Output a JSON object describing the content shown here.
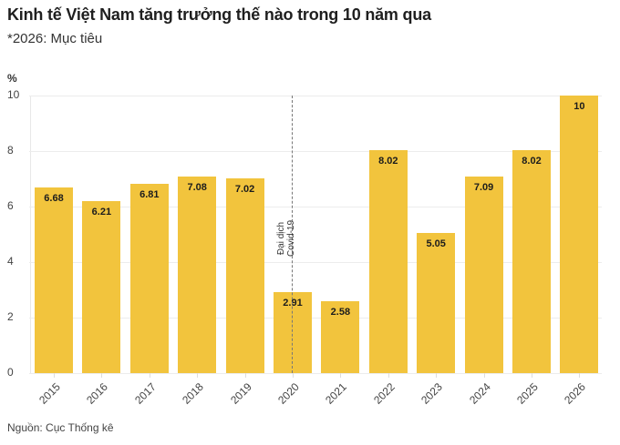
{
  "header": {
    "title": "Kinh tế Việt Nam tăng trưởng thế nào trong 10 năm qua",
    "subtitle": "*2026: Mục tiêu"
  },
  "footer": {
    "source": "Nguồn: Cục Thống kê"
  },
  "colors": {
    "bar": "#f2c43d",
    "grid": "#ececec",
    "annotation_line": "#777777"
  },
  "chart_data": {
    "type": "bar",
    "title": "Kinh tế Việt Nam tăng trưởng thế nào trong 10 năm qua",
    "subtitle": "*2026: Mục tiêu",
    "xlabel": "",
    "ylabel": "%",
    "categories": [
      "2015",
      "2016",
      "2017",
      "2018",
      "2019",
      "2020",
      "2021",
      "2022",
      "2023",
      "2024",
      "2025",
      "2026"
    ],
    "values": [
      6.68,
      6.21,
      6.81,
      7.08,
      7.02,
      2.91,
      2.58,
      8.02,
      5.05,
      7.09,
      8.02,
      10
    ],
    "labels": [
      "6.68",
      "6.21",
      "6.81",
      "7.08",
      "7.02",
      "2.91",
      "2.58",
      "8.02",
      "5.05",
      "7.09",
      "8.02",
      "10"
    ],
    "ylim": [
      0,
      10
    ],
    "yticks": [
      "0",
      "2",
      "4",
      "6",
      "8",
      "10"
    ],
    "grid": true,
    "legend": null,
    "annotations": [
      {
        "x": "2020",
        "type": "vertical-dashed-line",
        "text_line1": "Đại dịch",
        "text_line2": "Covid-19"
      }
    ],
    "source": "Nguồn: Cục Thống kê"
  }
}
